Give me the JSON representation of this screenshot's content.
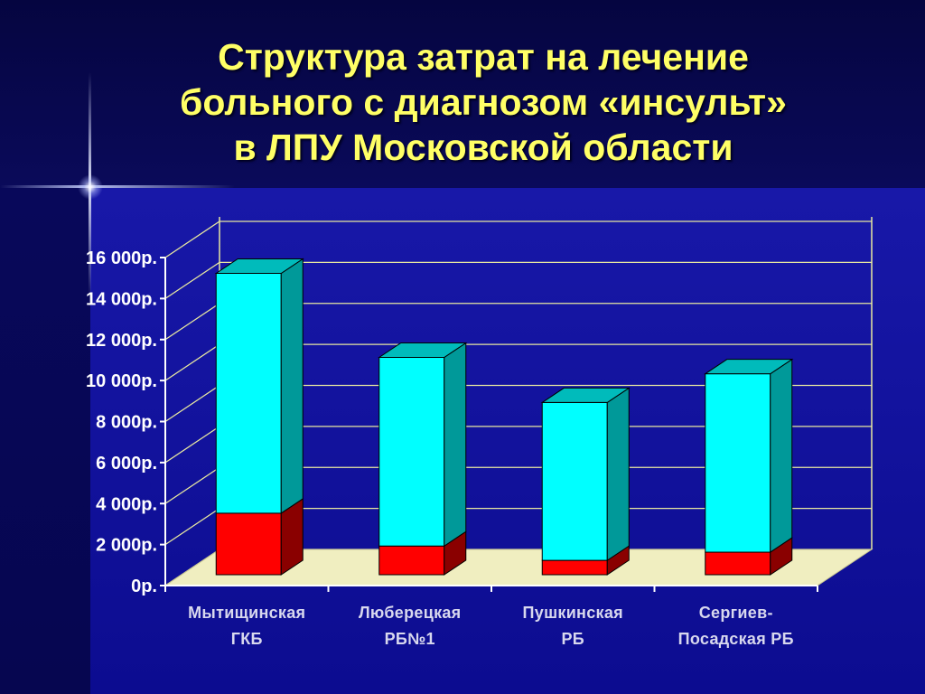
{
  "slide": {
    "title_lines": [
      "Структура затрат на лечение",
      "больного с диагнозом «инсульт»",
      "в ЛПУ Московской области"
    ]
  },
  "chart_data": {
    "type": "bar",
    "stacked": true,
    "three_d": true,
    "title": "Структура затрат на лечение больного с диагнозом «инсульт» в ЛПУ Московской области",
    "categories": [
      [
        "Мытищинская",
        "ГКБ"
      ],
      [
        "Люберецкая",
        "РБ№1"
      ],
      [
        "Пушкинская",
        "РБ"
      ],
      [
        "Сергиев-",
        "Посадская РБ"
      ]
    ],
    "series": [
      {
        "values": [
          3000,
          1400,
          700,
          1100
        ]
      },
      {
        "values": [
          11700,
          9200,
          7700,
          8700
        ]
      }
    ],
    "y_ticks": [
      0,
      2000,
      4000,
      6000,
      8000,
      10000,
      12000,
      14000,
      16000
    ],
    "y_tick_labels": [
      "0р.",
      "2 000р.",
      "4 000р.",
      "6 000р.",
      "8 000р.",
      "10 000р.",
      "12 000р.",
      "14 000р.",
      "16 000р."
    ],
    "ylim": [
      0,
      16000
    ],
    "grid": true,
    "legend": "none",
    "colors": {
      "series_front": [
        "#ff0000",
        "#00ffff"
      ],
      "series_side": [
        "#8a0000",
        "#009999"
      ],
      "series_top": [
        "#b00000",
        "#00bbbb"
      ],
      "floor": "#f0eec0",
      "wall_lines": "#e8e8a0",
      "axis": "#ffffff"
    }
  }
}
